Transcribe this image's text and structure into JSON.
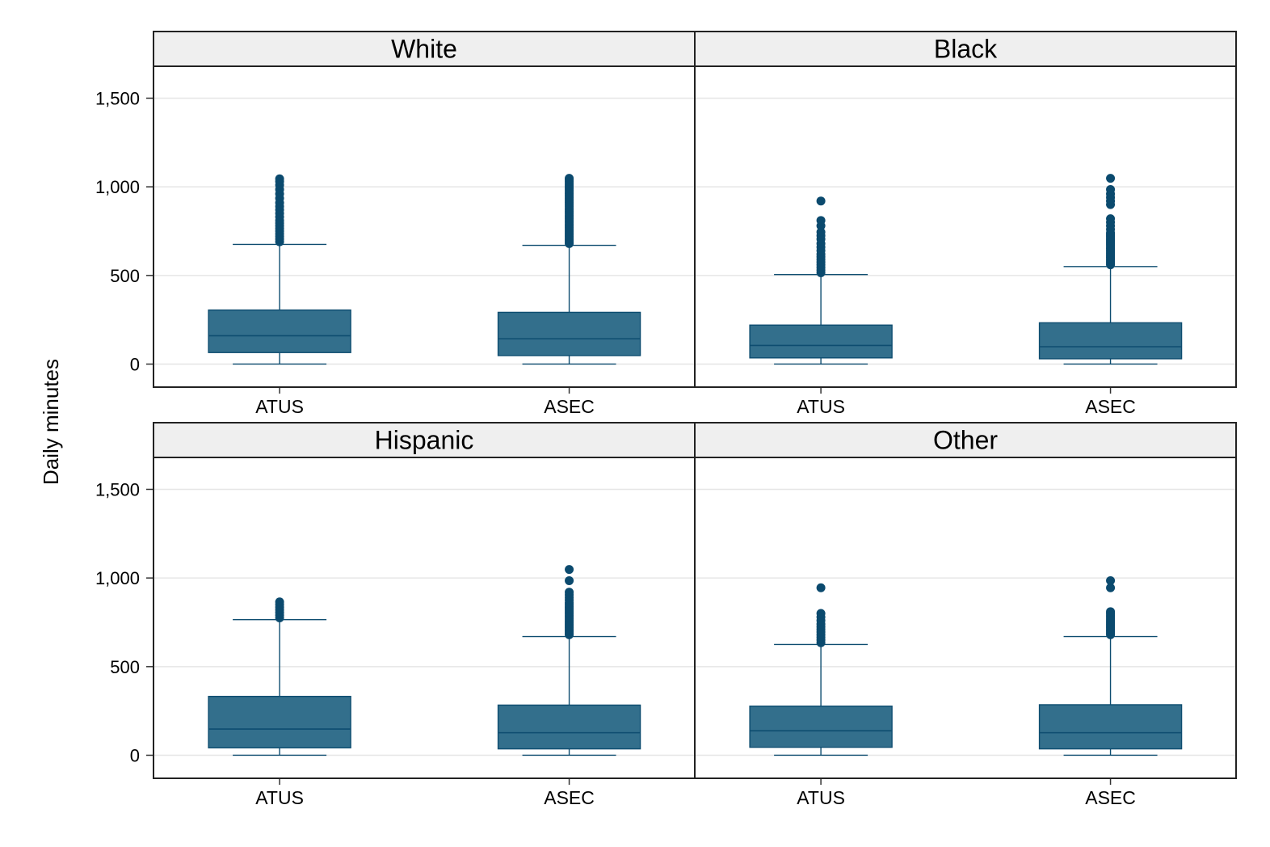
{
  "chart_data": {
    "type": "boxplot",
    "ylabel": "Daily minutes",
    "ylim": [
      -130,
      1680
    ],
    "yticks": [
      0,
      500,
      1000,
      1500
    ],
    "ytick_labels": [
      "0",
      "500",
      "1,000",
      "1,500"
    ],
    "grid": true,
    "colors": {
      "box_fill": "#336f8c",
      "box_stroke": "#0e4d70",
      "outlier": "#0b4a6e",
      "strip_bg": "#efefef",
      "gridline": "#e6e6e6"
    },
    "categories": [
      "ATUS",
      "ASEC"
    ],
    "panels": [
      {
        "title": "White",
        "boxes": [
          {
            "category": "ATUS",
            "min": 0,
            "q1": 65,
            "median": 160,
            "q3": 305,
            "max": 675,
            "outliers": [
              690,
              705,
              720,
              735,
              750,
              765,
              780,
              795,
              810,
              830,
              850,
              870,
              890,
              910,
              935,
              960,
              985,
              1010,
              1030,
              1045
            ]
          },
          {
            "category": "ASEC",
            "min": 0,
            "q1": 48,
            "median": 143,
            "q3": 292,
            "max": 670,
            "outliers": [
              680,
              690,
              700,
              710,
              720,
              730,
              740,
              750,
              760,
              770,
              780,
              790,
              800,
              810,
              820,
              830,
              840,
              850,
              860,
              870,
              880,
              890,
              900,
              910,
              920,
              930,
              940,
              950,
              960,
              970,
              980,
              990,
              1000,
              1010,
              1020,
              1030,
              1040,
              1048
            ]
          }
        ]
      },
      {
        "title": "Black",
        "boxes": [
          {
            "category": "ATUS",
            "min": 0,
            "q1": 35,
            "median": 105,
            "q3": 220,
            "max": 505,
            "outliers": [
              515,
              530,
              545,
              560,
              575,
              590,
              605,
              620,
              640,
              660,
              680,
              705,
              725,
              745,
              780,
              810,
              920
            ]
          },
          {
            "category": "ASEC",
            "min": 0,
            "q1": 30,
            "median": 98,
            "q3": 233,
            "max": 550,
            "outliers": [
              560,
              570,
              580,
              590,
              600,
              610,
              620,
              630,
              640,
              650,
              660,
              670,
              680,
              690,
              700,
              710,
              720,
              730,
              740,
              760,
              780,
              800,
              820,
              900,
              920,
              940,
              960,
              985,
              1048
            ]
          }
        ]
      },
      {
        "title": "Hispanic",
        "boxes": [
          {
            "category": "ATUS",
            "min": 0,
            "q1": 42,
            "median": 148,
            "q3": 332,
            "max": 765,
            "outliers": [
              775,
              790,
              805,
              820,
              835,
              850,
              865
            ]
          },
          {
            "category": "ASEC",
            "min": 0,
            "q1": 36,
            "median": 127,
            "q3": 283,
            "max": 670,
            "outliers": [
              680,
              690,
              700,
              710,
              720,
              730,
              740,
              750,
              760,
              770,
              780,
              790,
              800,
              810,
              820,
              830,
              840,
              850,
              860,
              875,
              890,
              905,
              920,
              985,
              1048
            ]
          }
        ]
      },
      {
        "title": "Other",
        "boxes": [
          {
            "category": "ATUS",
            "min": 0,
            "q1": 45,
            "median": 138,
            "q3": 277,
            "max": 625,
            "outliers": [
              635,
              650,
              665,
              680,
              695,
              710,
              725,
              740,
              760,
              780,
              800,
              945
            ]
          },
          {
            "category": "ASEC",
            "min": 0,
            "q1": 36,
            "median": 127,
            "q3": 285,
            "max": 670,
            "outliers": [
              680,
              690,
              700,
              710,
              720,
              730,
              740,
              750,
              760,
              770,
              780,
              790,
              800,
              810,
              945,
              985
            ]
          }
        ]
      }
    ]
  }
}
